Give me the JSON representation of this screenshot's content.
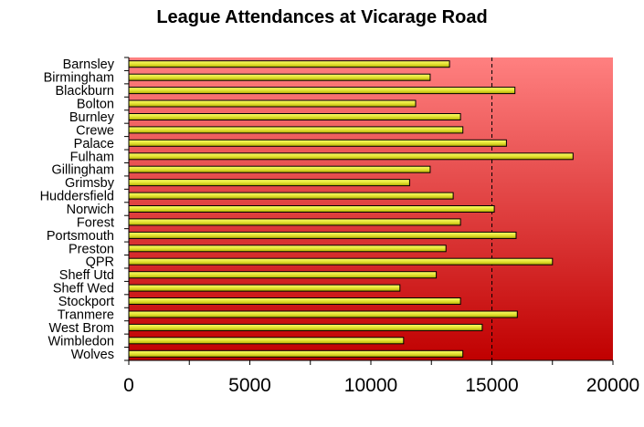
{
  "chart_data": {
    "type": "bar",
    "orientation": "horizontal",
    "title": "League Attendances at Vicarage Road",
    "xlabel": "",
    "ylabel": "",
    "categories": [
      "Barnsley",
      "Birmingham",
      "Blackburn",
      "Bolton",
      "Burnley",
      "Crewe",
      "Palace",
      "Fulham",
      "Gillingham",
      "Grimsby",
      "Huddersfield",
      "Norwich",
      "Forest",
      "Portsmouth",
      "Preston",
      "QPR",
      "Sheff Utd",
      "Sheff Wed",
      "Stockport",
      "Tranmere",
      "West Brom",
      "Wimbledon",
      "Wolves"
    ],
    "values": [
      13250,
      12450,
      15950,
      11850,
      13700,
      13800,
      15600,
      18350,
      12450,
      11600,
      13400,
      15100,
      13700,
      16000,
      13100,
      17500,
      12700,
      11200,
      13700,
      16050,
      14600,
      11350,
      13800
    ],
    "xlim": [
      0,
      20000
    ],
    "xticks": [
      "0",
      "5000",
      "10000",
      "15000",
      "20000"
    ],
    "reference_line": 15000,
    "grid": "vertical",
    "legend": "none",
    "colors": {
      "bar_fill_top": "#ffff66",
      "bar_fill_mid": "#e0e030",
      "bar_fill_bottom": "#b0a800",
      "bar_stroke": "#000000",
      "plot_bg_top": "#ff8080",
      "plot_bg_bottom": "#c00000"
    }
  }
}
